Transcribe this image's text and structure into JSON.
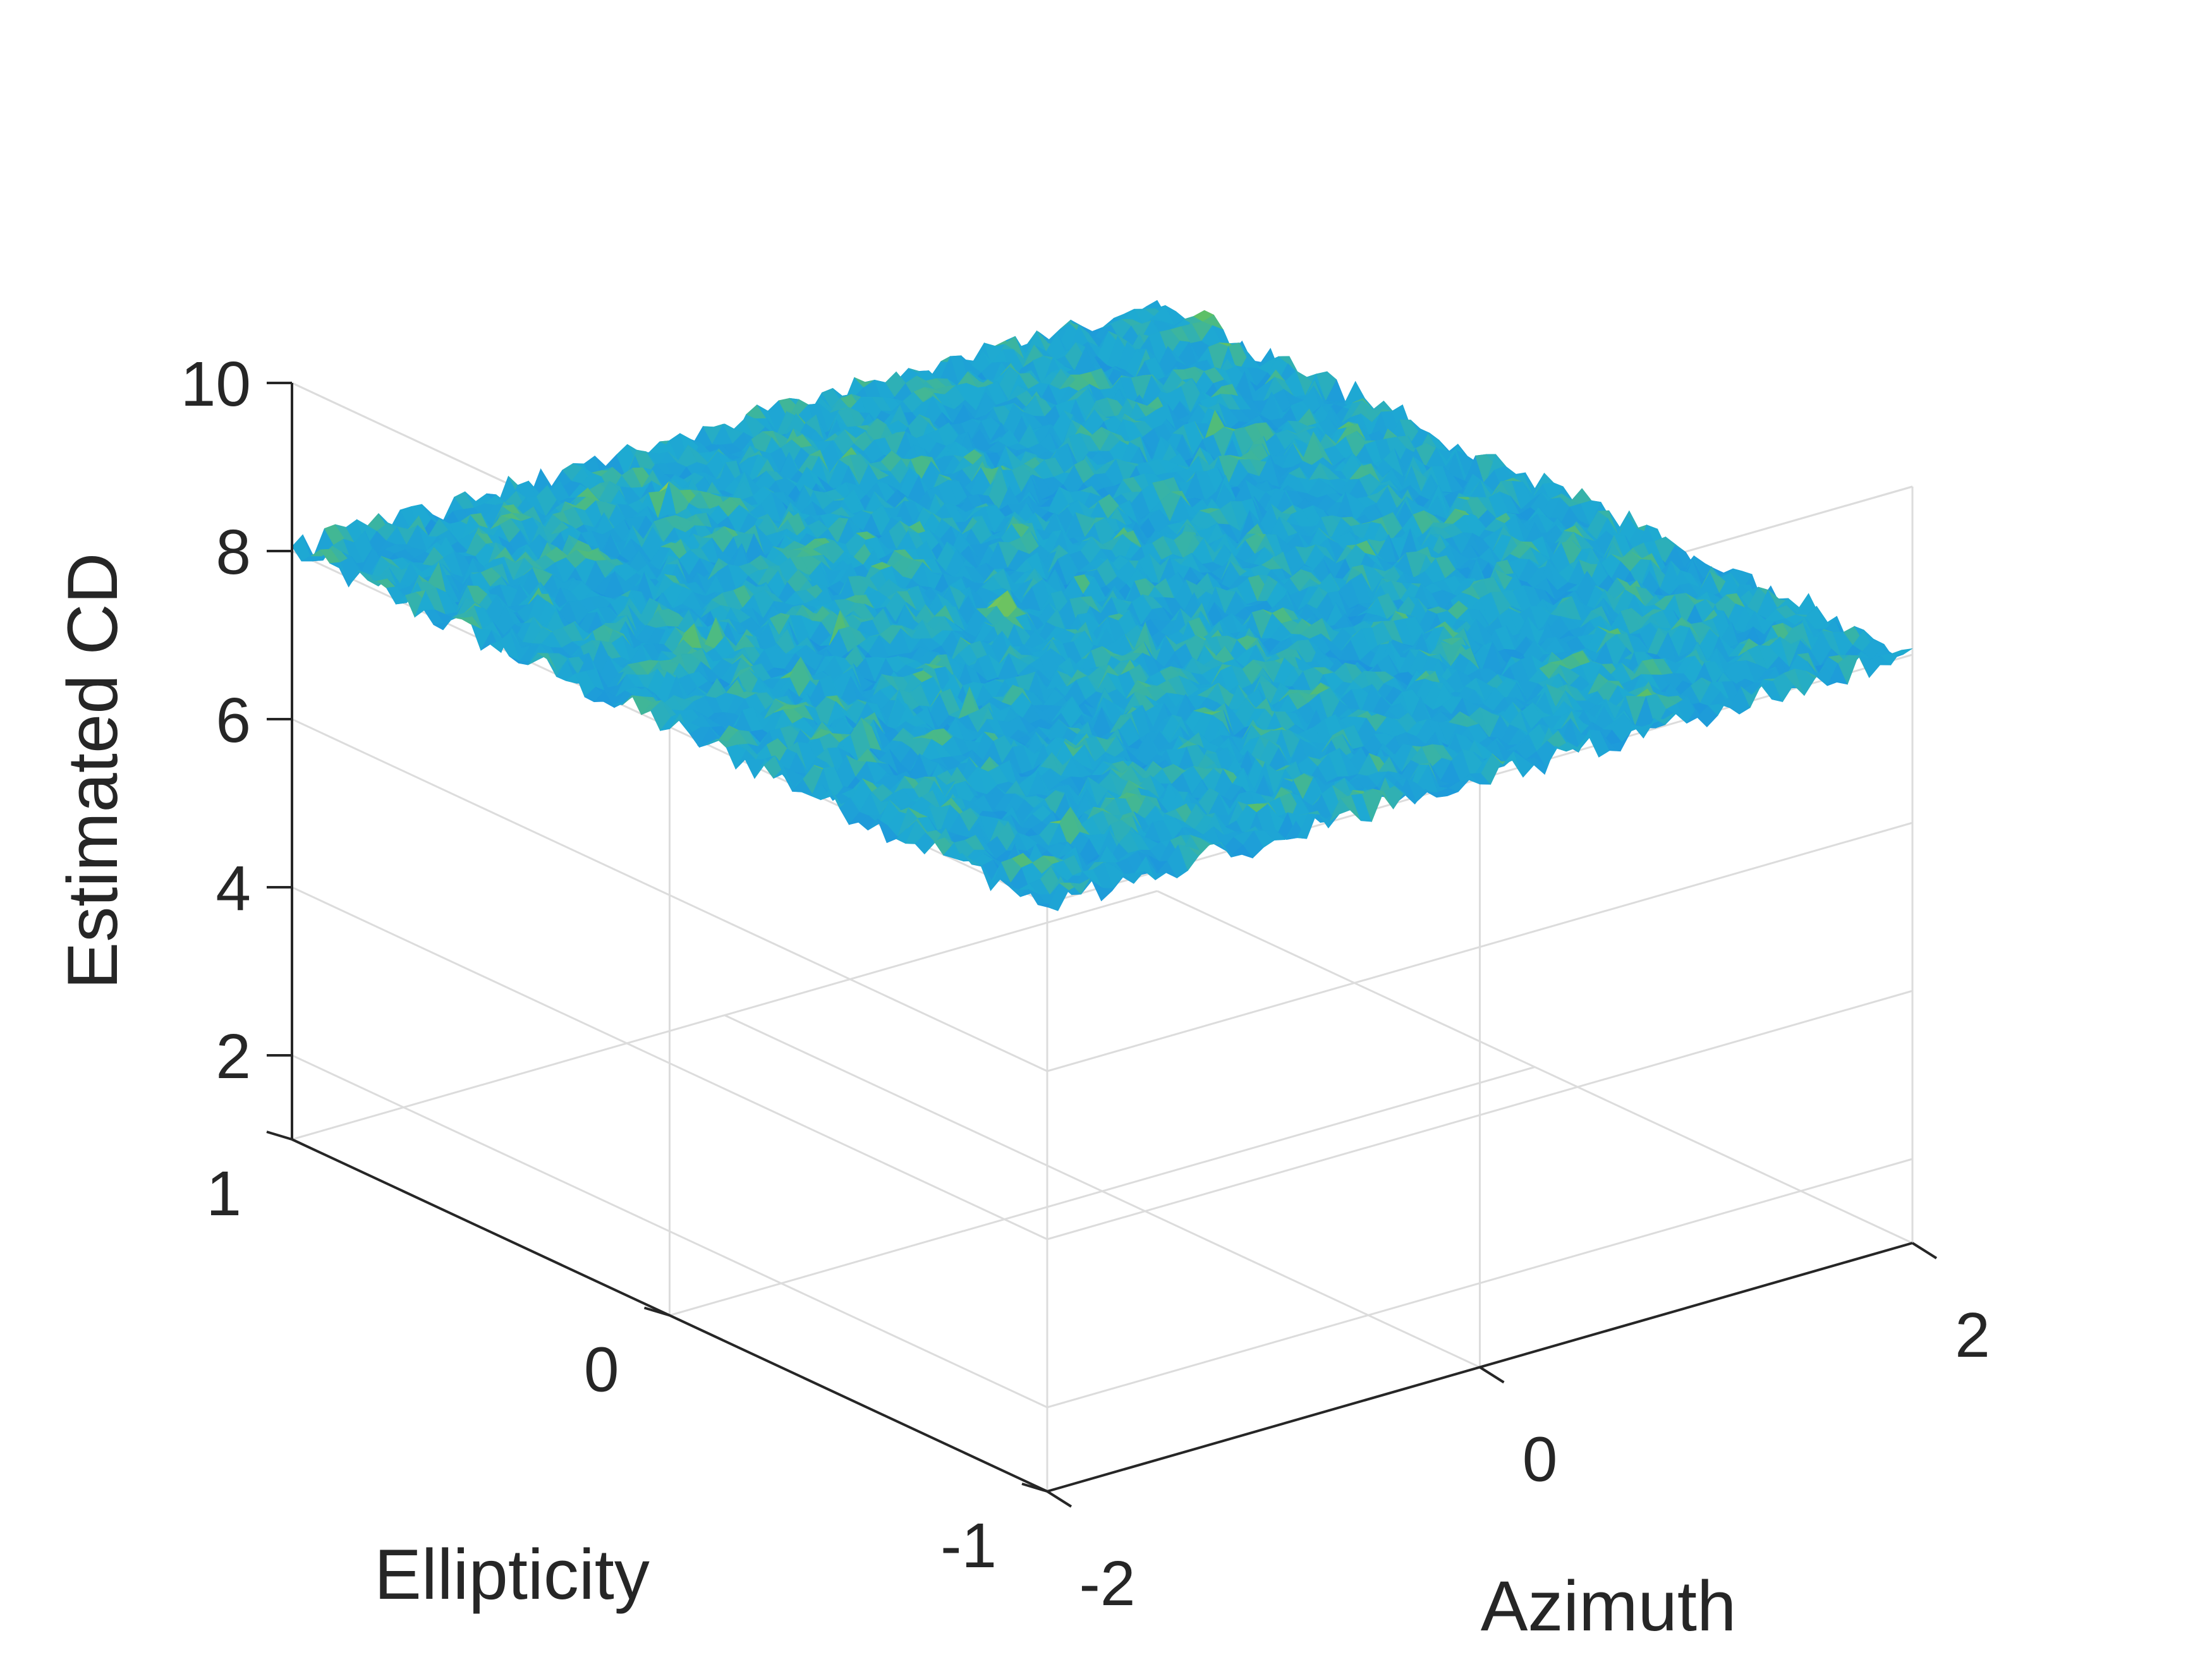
{
  "chart_data": {
    "type": "surface",
    "title": "",
    "xlabel": "Azimuth",
    "ylabel": "Ellipticity",
    "zlabel": "Estimated CD",
    "xlim": [
      -2,
      2
    ],
    "ylim": [
      -1,
      1
    ],
    "zlim": [
      1,
      10
    ],
    "xticks": [
      -2,
      0,
      2
    ],
    "yticks": [
      -1,
      0,
      1
    ],
    "zticks": [
      2,
      4,
      6,
      8,
      10
    ],
    "x_tick_labels": [
      "-2",
      "0",
      "2"
    ],
    "y_tick_labels": [
      "-1",
      "0",
      "1"
    ],
    "z_tick_labels": [
      "2",
      "4",
      "6",
      "8",
      "10"
    ],
    "grid": true,
    "colormap": "parula",
    "surface": {
      "description_mean_z": 8.0,
      "z_range": [
        7.8,
        8.3
      ],
      "x_range": [
        -2,
        2
      ],
      "y_range": [
        -1,
        1
      ],
      "noise": "random"
    },
    "colors": {
      "low": "#1d9fe0",
      "mid": "#5cc067",
      "high": "#f2e02c",
      "axis": "#262626",
      "grid": "#dcdcdc"
    }
  }
}
